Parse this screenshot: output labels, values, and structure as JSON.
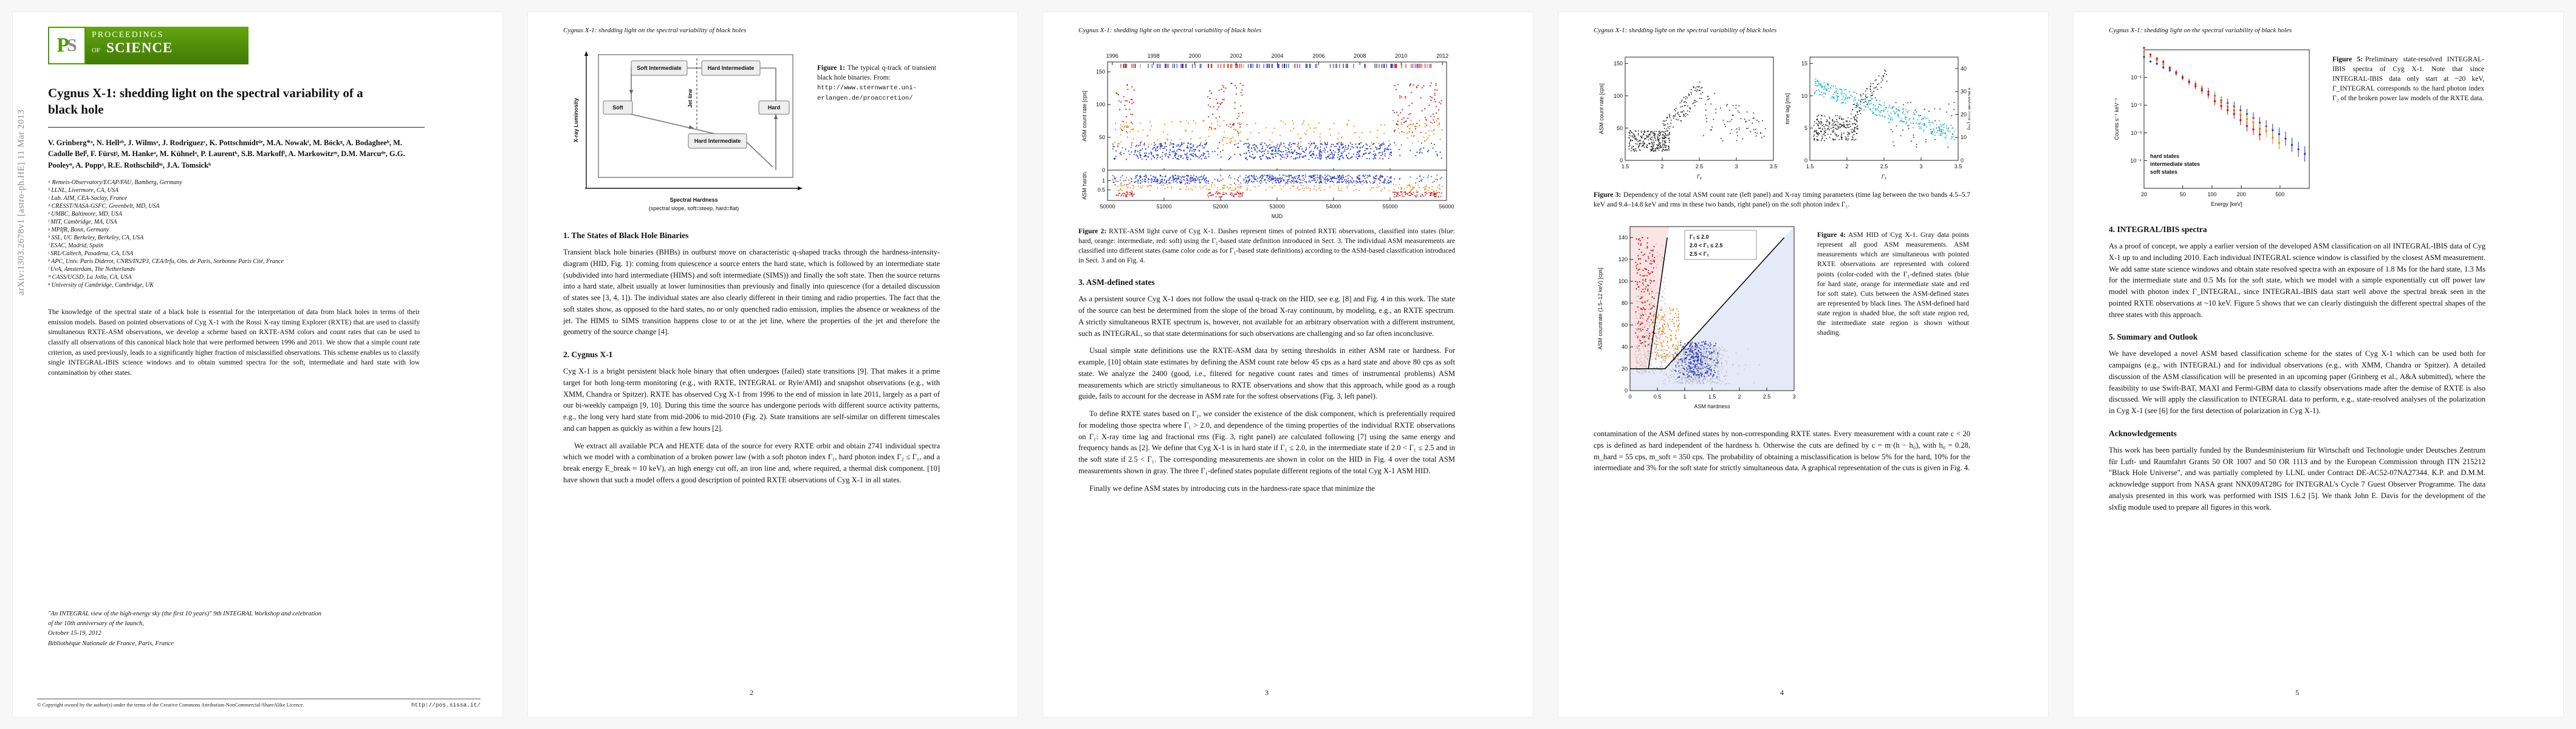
{
  "arxiv_label": "arXiv:1303.2678v1  [astro-ph.HE]  11 Mar 2013",
  "banner": {
    "logo_p": "P",
    "logo_s": "S",
    "line1": "PROCEEDINGS",
    "line2": "OF",
    "line3": "SCIENCE"
  },
  "title": "Cygnus X-1: shedding light on the spectral variability of a black hole",
  "running_title": "Cygnus X-1: shedding light on the spectral variability of black holes",
  "authors": "V. Grinberg*ᵃ, N. Hellᵃᵇ, J. Wilmsᵃ, J. Rodriguezᶜ, K. Pottschmidtᵈᵉ, M.A. Nowakᶠ, M. Böckᵍ, A. Bodagheeʰ, M. Cadolle Belⁱ, F. Fürstʲ, M. Hankeᵃ, M. Kühnelᵃ, P. Laurentᵏ, S.B. Markoffˡ, A. Markowitzᵐ, D.M. Marcuᵈᵉ, G.G. Pooleyⁿ, A. Poppᵃ, R.E. Rothschildᵐ, J.A. Tomsickʰ",
  "affiliations": [
    "ᵃ Remeis-Observatory/ECAP/FAU, Bamberg, Germany",
    "ᵇ LLNL, Livermore, CA, USA",
    "ᶜ Lab. AIM, CEA-Saclay, France",
    "ᵈ CRESST/NASA-GSFC, Greenbelt, MD, USA",
    "ᵉ UMBC, Baltimore, MD, USA",
    "ᶠ MIT, Cambridge, MA, USA",
    "ᵍ MPIfR, Bonn, Germany",
    "ʰ SSL, UC Berkeley, Berkeley, CA, USA",
    "ⁱ ESAC, Madrid, Spain",
    "ʲ SRL/Caltech, Pasadena, CA, USA",
    "ᵏ APC, Univ. Paris Diderot, CNRS/IN2P3, CEA/Irfu, Obs. de Paris, Sorbonne Paris Cité, France",
    "ˡ UvA, Amsterdam, The Netherlands",
    "ᵐ CASS/UCSD, La Jolla, CA, USA",
    "ⁿ University of Cambridge, Cambridge, UK"
  ],
  "abstract": "The knowledge of the spectral state of a black hole is essential for the interpretation of data from black holes in terms of their emission models. Based on pointed observations of Cyg X-1 with the Rossi X-ray timing Explorer (RXTE) that are used to classify simultaneous RXTE-ASM observations, we develop a scheme based on RXTE-ASM colors and count rates that can be used to classify all observations of this canonical black hole that were performed between 1996 and 2011. We show that a simple count rate criterion, as used previously, leads to a significantly higher fraction of misclassified observations. This scheme enables us to classify single INTEGRAL-IBIS science windows and to obtain summed spectra for the soft, intermediate and hard state with low contamination by other states.",
  "conference": {
    "lines": [
      "\"An INTEGRAL view of the high-energy sky (the first 10 years)\" 9th INTEGRAL Workshop and celebration",
      "of the 10th anniversary of the launch,",
      "October 15-19, 2012",
      "Bibliothèque Nationale de France, Paris, France"
    ]
  },
  "footer": {
    "copyright": "© Copyright owned by the author(s) under the terms of the Creative Commons Attribution-NonCommercial-ShareAlike Licence.",
    "url": "http://pos.sissa.it/"
  },
  "page2": {
    "fig1_label": "Figure 1:",
    "fig1_text": "The typical q-track of transient black hole binaries. From:",
    "fig1_url": "http://www.sternwarte.uni-erlangen.de/proaccretion/",
    "sec1_title": "1. The States of Black Hole Binaries",
    "sec1_p1": "Transient black hole binaries (BHBs) in outburst move on characteristic q-shaped tracks through the hardness-intensity-diagram (HID, Fig. 1): coming from quiescence a source enters the hard state, which is followed by an intermediate state (subdivided into hard intermediate (HIMS) and soft intermediate (SIMS)) and finally the soft state. Then the source returns into a hard state, albeit usually at lower luminosities than previously and finally into quiescence (for a detailed discussion of states see [3, 4, 1]). The individual states are also clearly different in their timing and radio properties. The fact that the soft states show, as opposed to the hard states, no or only quenched radio emission, implies the absence or weakness of the jet. The HIMS to SIMS transition happens close to or at the jet line, where the properties of the jet and therefore the geometry of the source change [4].",
    "sec2_title": "2. Cygnus X-1",
    "sec2_p1": "Cyg X-1 is a bright persistent black hole binary that often undergoes (failed) state transitions [9]. That makes it a prime target for both long-term monitoring (e.g., with RXTE, INTEGRAL or Ryle/AMI) and snapshot observations (e.g., with XMM, Chandra or Spitzer). RXTE has observed Cyg X-1 from 1996 to the end of mission in late 2011, largely as a part of our bi-weekly campaign [9, 10]. During this time the source has undergone periods with different source activity patterns, e.g., the long very hard state from mid-2006 to mid-2010 (Fig. 2). State transitions are self-similar on different timescales and can happen as quickly as within a few hours [2].",
    "sec2_p2": "We extract all available PCA and HEXTE data of the source for every RXTE orbit and obtain 2741 individual spectra which we model with a combination of a broken power law (with a soft photon index Γ₁, hard photon index Γ₂ ≤ Γ₁, and a break energy E_break ≈ 10 keV), an high energy cut off, an iron line and, where required, a thermal disk component. [10] have shown that such a model offers a good description of pointed RXTE observations of Cyg X-1 in all states.",
    "page_num": "2"
  },
  "page3": {
    "fig2_label": "Figure 2:",
    "fig2_text": "RXTE-ASM light curve of Cyg X-1. Dashes represent times of pointed RXTE observations, classified into states (blue: hard, orange: intermediate, red: soft) using the Γ₁-based state definition introduced in Sect. 3. The individual ASM measurements are classified into different states (same color code as for Γ₁-based state definitions) according to the ASM-based classification introduced in Sect. 3 and on Fig. 4.",
    "sec3_title": "3. ASM-defined states",
    "sec3_p1": "As a persistent source Cyg X-1 does not follow the usual q-track on the HID, see e.g. [8] and Fig. 4 in this work. The state of the source can best be determined from the slope of the broad X-ray continuum, by modeling, e.g., an RXTE spectrum. A strictly simultaneous RXTE spectrum is, however, not available for an arbitrary observation with a different instrument, such as INTEGRAL, so that state determinations for such observations are challenging and so far often inconclusive.",
    "sec3_p2": "Usual simple state definitions use the RXTE-ASM data by setting thresholds in either ASM rate or hardness. For example, [10] obtain state estimates by defining the ASM count rate below 45 cps as a hard state and above 80 cps as soft state. We analyze the 2400 (good, i.e., filtered for negative count rates and times of instrumental problems) ASM measurements which are strictly simultaneous to RXTE observations and show that this approach, while good as a rough guide, fails to account for the decrease in ASM rate for the softest observations (Fig. 3, left panel).",
    "sec3_p3": "To define RXTE states based on Γ₁, we consider the existence of the disk component, which is preferentially required for modeling those spectra where Γ₁ > 2.0, and dependence of the timing properties of the individual RXTE observations on Γ₁: X-ray time lag and fractional rms (Fig. 3, right panel) are calculated following [7] using the same energy and frequency bands as [2]. We define that Cyg X-1 is in hard state if Γ₁ ≤ 2.0, in the intermediate state if 2.0 < Γ₁ ≤ 2.5 and in the soft state if 2.5 < Γ₁. The corresponding measurements are shown in color on the HID in Fig. 4 over the total ASM measurements shown in gray. The three Γ₁-defined states populate different regions of the total Cyg X-1 ASM HID.",
    "sec3_p4": "Finally we define ASM states by introducing cuts in the hardness-rate space that minimize the",
    "page_num": "3"
  },
  "page4": {
    "fig3_label": "Figure 3:",
    "fig3_text": "Dependency of the total ASM count rate (left panel) and X-ray timing parameters (time lag between the two bands 4.5–5.7 keV and 9.4–14.8 keV and rms in these two bands, right panel) on the soft photon index Γ₁.",
    "fig4_label": "Figure 4:",
    "fig4_text": "ASM HID of Cyg X-1. Gray data points represent all good ASM measurements. ASM measurements which are simultaneous with pointed RXTE observations are represented with colored points (color-coded with the Γ₁-defined states (blue for hard state, orange for intermediate state and red for soft state). Cuts between the ASM-defined states are represented by black lines. The ASM-defined hard state region is shaded blue, the soft state region red, the intermediate state region is shown without shading.",
    "p_cont": "contamination of the ASM defined states by non-corresponding RXTE states. Every measurement with a count rate c < 20 cps is defined as hard independent of the hardness h. Otherwise the cuts are defined by c = m·(h − h₀), with h₀ = 0.28, m_hard = 55 cps, m_soft = 350 cps. The probability of obtaining a misclassification is below 5% for the hard, 10% for the intermediate and 3% for the soft state for strictly simultaneous data. A graphical representation of the cuts is given in Fig. 4.",
    "page_num": "4"
  },
  "page5": {
    "fig5_label": "Figure 5:",
    "fig5_text": "Preliminary state-resolved INTEGRAL-IBIS spectra of Cyg X-1. Note that since INTEGRAL-IBIS data only start at ~20 keV, Γ_INTEGRAL corresponds to the hard photon index Γ₂ of the broken power law models of the RXTE data.",
    "sec4_title": "4. INTEGRAL/IBIS spectra",
    "sec4_p1": "As a proof of concept, we apply a earlier version of the developed ASM classification on all INTEGRAL-IBIS data of Cyg X-1 up to and including 2010. Each individual INTEGRAL science window is classified by the closest ASM measurement. We add same state science windows and obtain state resolved spectra with an exposure of 1.8 Ms for the hard state, 1.3 Ms for the intermediate state and 0.5 Ms for the soft state, which we model with a simple exponentially cut off power law model with photon index Γ_INTEGRAL, since INTEGRAL-IBIS data start well above the spectral break seen in the pointed RXTE observations at ~10 keV. Figure 5 shows that we can clearly distinguish the different spectral shapes of the three states with this approach.",
    "sec5_title": "5. Summary and Outlook",
    "sec5_p1": "We have developed a novel ASM based classification scheme for the states of Cyg X-1 which can be used both for campaigns (e.g., with INTEGRAL) and for individual observations (e.g., with XMM, Chandra or Spitzer). A detailed discussion of the ASM classification will be presented in an upcoming paper (Grinberg et al., A&A submitted), where the feasibility to use Swift-BAT, MAXI and Fermi-GBM data to classify observations made after the demise of RXTE is also discussed. We will apply the classification to INTEGRAL data to perform, e.g., state-resolved analyses of the polarization in Cyg X-1 (see [6] for the first detection of polarization in Cyg X-1).",
    "ack_title": "Acknowledgements",
    "ack_p1": "This work has been partially funded by the Bundesministerium für Wirtschaft und Technologie under Deutsches Zentrum für Luft- und Raumfahrt Grants 50 OR 1007 and 50 OR 1113 and by the European Commission through ITN 215212 \"Black Hole Universe\", and was partially completed by LLNL under Contract DE-AC52-07NA27344. K.P. and D.M.M. acknowledge support from NASA grant NNX09AT28G for INTEGRAL's Cycle 7 Guest Observer Programme. The data analysis presented in this work was performed with ISIS 1.6.2 [5]. We thank John E. Davis for the development of the slxfig module used to prepare all figures in this work.",
    "page_num": "5"
  },
  "colors": {
    "hard": "#1b2fbe",
    "intermediate": "#f07c00",
    "soft": "#cf0000",
    "accent_green": "#4e9a06"
  },
  "figures": {
    "fig1": {
      "ylabel": "X-ray Luminosity",
      "xlabel1": "Spectral Hardness",
      "xlabel2": "(spectral slope, soft=steep, hard=flat)",
      "box_soft_im": "Soft Intermediate",
      "box_hard_im": "Hard Intermediate",
      "box_soft": "Soft",
      "box_hard": "Hard",
      "box_hard_im2": "Hard Intermediate",
      "jet": "Jet line"
    },
    "fig2": {
      "years": [
        "1996",
        "1998",
        "2000",
        "2002",
        "2004",
        "2006",
        "2008",
        "2010",
        "2012"
      ],
      "year_mjd": [
        50083,
        50814,
        51544,
        52275,
        53005,
        53736,
        54466,
        55197,
        55927
      ],
      "mjd_ticks": [
        50000,
        51000,
        52000,
        53000,
        54000,
        55000,
        56000
      ],
      "xlabel": "MJD",
      "ylabel_top": "ASM count rate [cps]",
      "yticks_top": [
        0,
        50,
        100,
        150
      ],
      "ylabel_bottom": "ASM hardn.",
      "yticks_bottom": [
        0.5,
        1
      ]
    },
    "fig3": {
      "xlabel": "Γ₁",
      "xticks": [
        1.5,
        2,
        2.5,
        3,
        3.5
      ],
      "ylabel_left": "ASM count rate [cps]",
      "yticks_left": [
        0,
        50,
        100,
        150
      ],
      "ylabel_lag": "time lag [ms]",
      "yticks_lag": [
        0,
        5,
        10,
        15
      ],
      "ylabel_rms": "fractional rms [%]",
      "yticks_rms": [
        0,
        10,
        20,
        30,
        40
      ]
    },
    "fig4": {
      "xlabel": "ASM hardness",
      "xticks": [
        0,
        0.5,
        1,
        1.5,
        2,
        2.5,
        3
      ],
      "ylabel": "ASM countrate (1.5–12 keV) [cps]",
      "yticks": [
        0,
        20,
        40,
        60,
        80,
        100,
        120,
        140
      ],
      "legend": [
        {
          "label": "Γ₁ ≤ 2.0",
          "color": "#1b2fbe"
        },
        {
          "label": "2.0 < Γ₁ ≤ 2.5",
          "color": "#f07c00"
        },
        {
          "label": "2.5 < Γ₁",
          "color": "#cf0000"
        }
      ]
    },
    "fig5": {
      "xlabel": "Energy [keV]",
      "xticks": [
        20,
        50,
        100,
        200,
        500
      ],
      "ylabel": "Counts s⁻¹ keV⁻¹",
      "ytick_labels": [
        "10⁻¹",
        "10⁻²",
        "10⁻³",
        "10⁻⁴"
      ],
      "ytick_values": [
        0.1,
        0.01,
        0.001,
        0.0001
      ],
      "legend": [
        {
          "label": "hard states",
          "color": "#1b2fbe"
        },
        {
          "label": "intermediate states",
          "color": "#f07c00"
        },
        {
          "label": "soft states",
          "color": "#cf0000"
        }
      ]
    }
  }
}
